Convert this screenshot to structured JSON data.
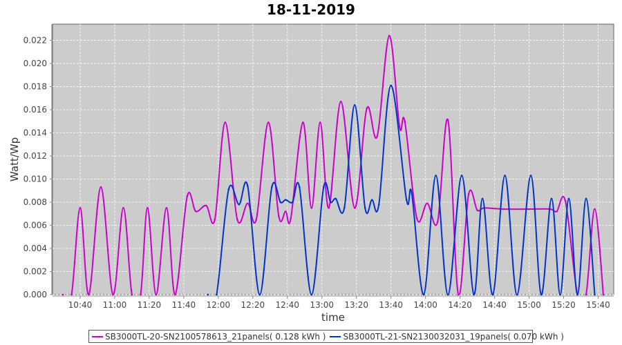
{
  "chart_data": {
    "type": "line",
    "title": "18-11-2019",
    "xlabel": "time",
    "ylabel": "Watt/Wp",
    "xlim": [
      "10:24",
      "15:49"
    ],
    "ylim": [
      0,
      0.0234
    ],
    "x_ticks": [
      "10:40",
      "11:00",
      "11:20",
      "11:40",
      "12:00",
      "12:20",
      "12:40",
      "13:00",
      "13:20",
      "13:40",
      "14:00",
      "14:20",
      "14:40",
      "15:00",
      "15:20",
      "15:40"
    ],
    "y_ticks": [
      "0.000",
      "0.002",
      "0.004",
      "0.006",
      "0.008",
      "0.010",
      "0.012",
      "0.014",
      "0.016",
      "0.018",
      "0.020",
      "0.022"
    ],
    "grid": true,
    "legend_position": "bottom",
    "background": "#cccccc",
    "series": [
      {
        "name": "SB3000TL-20-SN2100578613_21panels( 0.128 kWh )",
        "color": "#cc00cc",
        "points": [
          [
            "10:30",
            0
          ],
          [
            "10:35",
            0
          ],
          [
            "10:40",
            0.0075
          ],
          [
            "10:45",
            0
          ],
          [
            "10:52",
            0.0093
          ],
          [
            "10:59",
            0
          ],
          [
            "11:05",
            0.0075
          ],
          [
            "11:10",
            0
          ],
          [
            "11:15",
            0
          ],
          [
            "11:19",
            0.0075
          ],
          [
            "11:24",
            0
          ],
          [
            "11:30",
            0.0075
          ],
          [
            "11:35",
            0
          ],
          [
            "11:42",
            0.0085
          ],
          [
            "11:47",
            0.0072
          ],
          [
            "11:53",
            0.0077
          ],
          [
            "11:58",
            0.0065
          ],
          [
            "12:04",
            0.0149
          ],
          [
            "12:11",
            0.0065
          ],
          [
            "12:17",
            0.0079
          ],
          [
            "12:22",
            0.0065
          ],
          [
            "12:29",
            0.0149
          ],
          [
            "12:35",
            0.0068
          ],
          [
            "12:39",
            0.0072
          ],
          [
            "12:42",
            0.0066
          ],
          [
            "12:49",
            0.0149
          ],
          [
            "12:54",
            0.0075
          ],
          [
            "12:59",
            0.0149
          ],
          [
            "13:04",
            0.0075
          ],
          [
            "13:11",
            0.0167
          ],
          [
            "13:19",
            0.0075
          ],
          [
            "13:26",
            0.0161
          ],
          [
            "13:32",
            0.0137
          ],
          [
            "13:39",
            0.0224
          ],
          [
            "13:45",
            0.0145
          ],
          [
            "13:48",
            0.015
          ],
          [
            "13:55",
            0.0066
          ],
          [
            "14:01",
            0.0079
          ],
          [
            "14:07",
            0.0063
          ],
          [
            "14:13",
            0.0151
          ],
          [
            "14:19",
            0
          ],
          [
            "14:25",
            0.0087
          ],
          [
            "14:30",
            0.0073
          ],
          [
            "14:34",
            0.0075
          ],
          [
            "14:45",
            0.0074
          ],
          [
            "15:00",
            0.0074
          ],
          [
            "15:12",
            0.0074
          ],
          [
            "15:16",
            0.0072
          ],
          [
            "15:21",
            0.0081
          ],
          [
            "15:28",
            0
          ],
          [
            "15:33",
            0
          ],
          [
            "15:38",
            0.0074
          ],
          [
            "15:43",
            0
          ]
        ]
      },
      {
        "name": "SB3000TL-21-SN2130032031_19panels( 0.070 kWh )",
        "color": "#0033cc",
        "points": [
          [
            "11:54",
            0
          ],
          [
            "11:59",
            0
          ],
          [
            "12:06",
            0.0091
          ],
          [
            "12:12",
            0.0078
          ],
          [
            "12:17",
            0.0094
          ],
          [
            "12:24",
            0
          ],
          [
            "12:31",
            0.0093
          ],
          [
            "12:36",
            0.008
          ],
          [
            "12:39",
            0.0082
          ],
          [
            "12:43",
            0.008
          ],
          [
            "12:47",
            0.0093
          ],
          [
            "12:54",
            0
          ],
          [
            "13:01",
            0.0093
          ],
          [
            "13:05",
            0.008
          ],
          [
            "13:08",
            0.0083
          ],
          [
            "13:13",
            0.0075
          ],
          [
            "13:19",
            0.0164
          ],
          [
            "13:25",
            0.0075
          ],
          [
            "13:29",
            0.0082
          ],
          [
            "13:33",
            0.0078
          ],
          [
            "13:40",
            0.0181
          ],
          [
            "13:49",
            0.0082
          ],
          [
            "13:52",
            0.0088
          ],
          [
            "13:59",
            0
          ],
          [
            "14:06",
            0.0103
          ],
          [
            "14:13",
            0
          ],
          [
            "14:21",
            0.0103
          ],
          [
            "14:28",
            0
          ],
          [
            "14:33",
            0.0083
          ],
          [
            "14:39",
            0
          ],
          [
            "14:46",
            0.0103
          ],
          [
            "14:53",
            0
          ],
          [
            "15:01",
            0.0103
          ],
          [
            "15:07",
            0
          ],
          [
            "15:13",
            0.0083
          ],
          [
            "15:18",
            0
          ],
          [
            "15:23",
            0.0083
          ],
          [
            "15:28",
            0
          ],
          [
            "15:33",
            0.0083
          ],
          [
            "15:38",
            0
          ]
        ]
      }
    ]
  }
}
